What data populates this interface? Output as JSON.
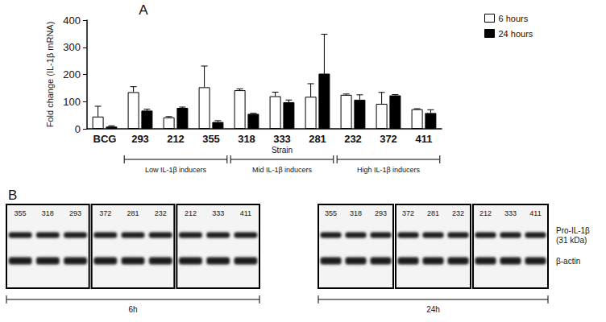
{
  "chart_data": {
    "type": "bar",
    "panel_label": "A",
    "ylabel": "Fold change (IL-1β mRNA)",
    "xlabel": "Strain",
    "categories": [
      "BCG",
      "293",
      "212",
      "355",
      "318",
      "333",
      "281",
      "232",
      "372",
      "411"
    ],
    "series": [
      {
        "name": "6 hours",
        "color": "#ffffff",
        "values": [
          45,
          135,
          42,
          153,
          142,
          120,
          118,
          125,
          92,
          72
        ],
        "errors": [
          38,
          20,
          3,
          78,
          5,
          15,
          48,
          3,
          42,
          2
        ]
      },
      {
        "name": "24 hours",
        "color": "#000000",
        "values": [
          8,
          67,
          77,
          25,
          55,
          98,
          203,
          107,
          123,
          58
        ],
        "errors": [
          3,
          5,
          3,
          5,
          2,
          8,
          145,
          18,
          3,
          12
        ]
      }
    ],
    "groups": [
      {
        "label": "Low IL-1β inducers",
        "categories": [
          "293",
          "212",
          "355"
        ]
      },
      {
        "label": "Mid IL-1β inducers",
        "categories": [
          "318",
          "333",
          "281"
        ]
      },
      {
        "label": "High IL-1β inducers",
        "categories": [
          "232",
          "372",
          "411"
        ]
      }
    ],
    "ylim": [
      0,
      400
    ],
    "yticks": [
      0,
      100,
      200,
      300,
      400
    ],
    "grid": false,
    "legend": "upper right"
  },
  "blot_panel": {
    "panel_label": "B",
    "band_labels": [
      [
        "Pro-IL-1β",
        "(31 kDa)"
      ],
      [
        "β-actin"
      ]
    ],
    "timepoints": [
      {
        "label": "6h",
        "boxes": [
          [
            "355",
            "318",
            "293"
          ],
          [
            "372",
            "281",
            "232"
          ],
          [
            "212",
            "333",
            "411"
          ]
        ]
      },
      {
        "label": "24h",
        "boxes": [
          [
            "355",
            "318",
            "293"
          ],
          [
            "372",
            "281",
            "232"
          ],
          [
            "212",
            "333",
            "411"
          ]
        ]
      }
    ]
  }
}
